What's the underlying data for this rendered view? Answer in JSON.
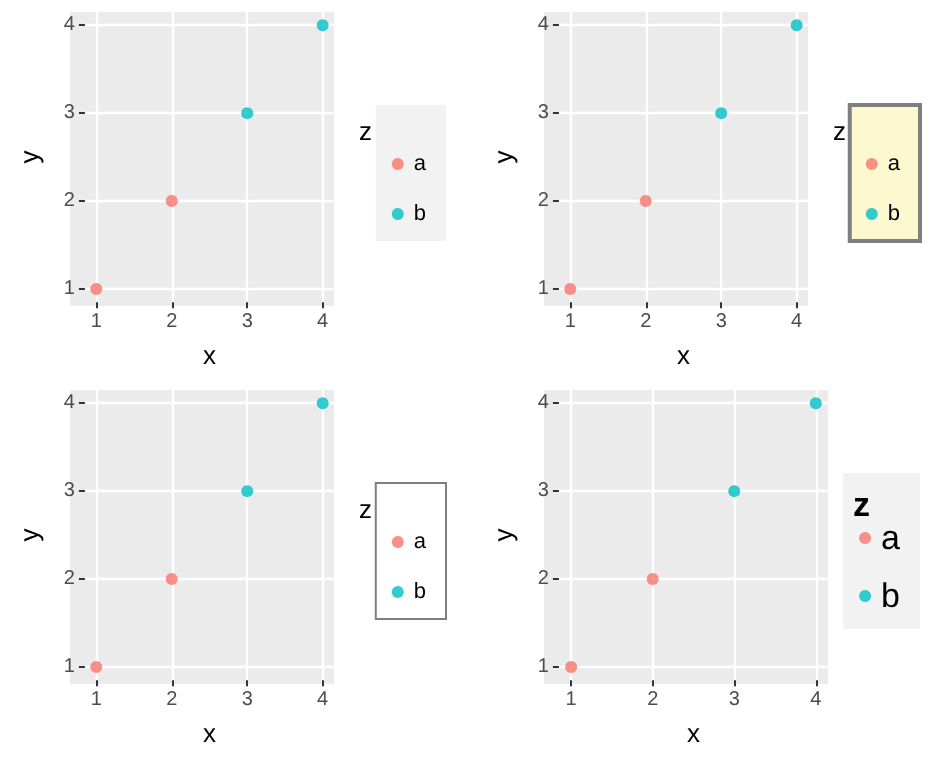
{
  "chart_data": [
    {
      "type": "scatter",
      "xlabel": "x",
      "ylabel": "y",
      "legend_title": "z",
      "xlim": [
        0.85,
        4.15
      ],
      "ylim": [
        0.85,
        4.15
      ],
      "xticks": [
        1,
        2,
        3,
        4
      ],
      "yticks": [
        1,
        2,
        3,
        4
      ],
      "grid": true,
      "legend": "right",
      "marker": "circle",
      "series": [
        {
          "name": "a",
          "color": "#f8766d",
          "x": [
            1,
            2
          ],
          "values": [
            1,
            2
          ]
        },
        {
          "name": "b",
          "color": "#00bfc4",
          "x": [
            3,
            4
          ],
          "values": [
            3,
            4
          ]
        }
      ]
    },
    {
      "type": "scatter",
      "xlabel": "x",
      "ylabel": "y",
      "legend_title": "z",
      "xlim": [
        0.85,
        4.15
      ],
      "ylim": [
        0.85,
        4.15
      ],
      "xticks": [
        1,
        2,
        3,
        4
      ],
      "yticks": [
        1,
        2,
        3,
        4
      ],
      "grid": true,
      "legend": "right",
      "marker": "circle",
      "series": [
        {
          "name": "a",
          "color": "#f8766d",
          "x": [
            1,
            2
          ],
          "values": [
            1,
            2
          ]
        },
        {
          "name": "b",
          "color": "#00bfc4",
          "x": [
            3,
            4
          ],
          "values": [
            3,
            4
          ]
        }
      ]
    },
    {
      "type": "scatter",
      "xlabel": "x",
      "ylabel": "y",
      "legend_title": "z",
      "xlim": [
        0.85,
        4.15
      ],
      "ylim": [
        0.85,
        4.15
      ],
      "xticks": [
        1,
        2,
        3,
        4
      ],
      "yticks": [
        1,
        2,
        3,
        4
      ],
      "grid": true,
      "legend": "right",
      "marker": "circle",
      "series": [
        {
          "name": "a",
          "color": "#f8766d",
          "x": [
            1,
            2
          ],
          "values": [
            1,
            2
          ]
        },
        {
          "name": "b",
          "color": "#00bfc4",
          "x": [
            3,
            4
          ],
          "values": [
            3,
            4
          ]
        }
      ]
    },
    {
      "type": "scatter",
      "xlabel": "x",
      "ylabel": "y",
      "legend_title": "z",
      "xlim": [
        0.85,
        4.15
      ],
      "ylim": [
        0.85,
        4.15
      ],
      "xticks": [
        1,
        2,
        3,
        4
      ],
      "yticks": [
        1,
        2,
        3,
        4
      ],
      "grid": true,
      "legend": "right",
      "marker": "circle",
      "series": [
        {
          "name": "a",
          "color": "#f8766d",
          "x": [
            1,
            2
          ],
          "values": [
            1,
            2
          ]
        },
        {
          "name": "b",
          "color": "#00bfc4",
          "x": [
            3,
            4
          ],
          "values": [
            3,
            4
          ]
        }
      ]
    }
  ]
}
